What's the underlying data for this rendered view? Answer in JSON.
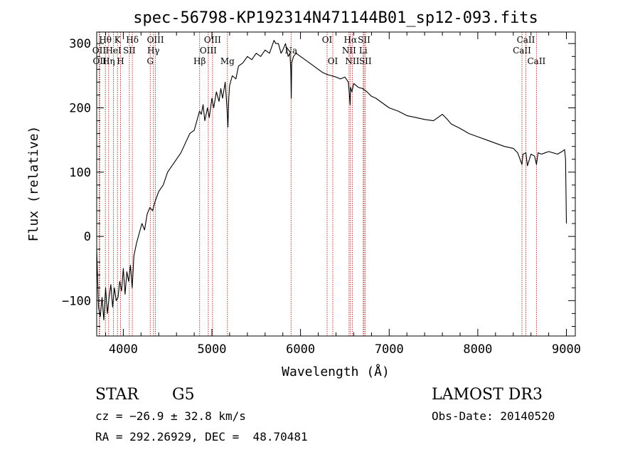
{
  "chart_data": {
    "type": "line",
    "title": "spec-56798-KP192314N471144B01_sp12-093.fits",
    "xlabel": "Wavelength (Å)",
    "ylabel": "Flux (relative)",
    "xlim": [
      3700,
      9100
    ],
    "ylim": [
      -155,
      318
    ],
    "xticks": [
      4000,
      5000,
      6000,
      7000,
      8000,
      9000
    ],
    "yticks": [
      -100,
      0,
      100,
      200,
      300
    ],
    "colors": {
      "spectrum": "#000000",
      "lines": "#b22222"
    },
    "series": [
      {
        "name": "spectrum",
        "x": [
          3700,
          3720,
          3740,
          3760,
          3780,
          3800,
          3820,
          3840,
          3860,
          3880,
          3900,
          3920,
          3940,
          3960,
          3980,
          4000,
          4020,
          4040,
          4060,
          4080,
          4100,
          4120,
          4150,
          4180,
          4210,
          4240,
          4270,
          4300,
          4330,
          4360,
          4400,
          4450,
          4500,
          4550,
          4600,
          4650,
          4700,
          4750,
          4800,
          4820,
          4840,
          4860,
          4880,
          4900,
          4920,
          4950,
          4970,
          5000,
          5020,
          5050,
          5080,
          5100,
          5120,
          5150,
          5170,
          5180,
          5190,
          5200,
          5230,
          5270,
          5300,
          5350,
          5400,
          5450,
          5500,
          5550,
          5600,
          5650,
          5700,
          5720,
          5750,
          5780,
          5800,
          5830,
          5860,
          5880,
          5890,
          5895,
          5900,
          5920,
          5950,
          6000,
          6050,
          6100,
          6150,
          6200,
          6250,
          6300,
          6350,
          6400,
          6450,
          6500,
          6540,
          6560,
          6563,
          6580,
          6600,
          6650,
          6700,
          6750,
          6800,
          6850,
          6900,
          6950,
          7000,
          7100,
          7200,
          7300,
          7400,
          7500,
          7600,
          7650,
          7700,
          7800,
          7900,
          8000,
          8100,
          8200,
          8300,
          8400,
          8450,
          8498,
          8510,
          8542,
          8560,
          8600,
          8640,
          8662,
          8680,
          8720,
          8760,
          8800,
          8850,
          8900,
          8950,
          8980,
          8990,
          9000
        ],
        "y": [
          -20,
          -110,
          -125,
          -95,
          -130,
          -80,
          -120,
          -95,
          -75,
          -110,
          -80,
          -100,
          -95,
          -70,
          -85,
          -50,
          -90,
          -55,
          -70,
          -45,
          -80,
          -30,
          -10,
          5,
          20,
          10,
          35,
          45,
          40,
          55,
          70,
          80,
          100,
          110,
          120,
          130,
          145,
          160,
          165,
          175,
          185,
          195,
          190,
          205,
          180,
          200,
          185,
          215,
          200,
          225,
          210,
          230,
          215,
          240,
          200,
          170,
          215,
          235,
          250,
          245,
          265,
          270,
          280,
          275,
          285,
          280,
          290,
          285,
          305,
          300,
          300,
          285,
          290,
          300,
          280,
          285,
          260,
          215,
          270,
          280,
          285,
          280,
          275,
          270,
          265,
          260,
          255,
          252,
          250,
          248,
          245,
          248,
          240,
          205,
          232,
          225,
          238,
          232,
          230,
          225,
          218,
          215,
          210,
          205,
          200,
          195,
          188,
          185,
          182,
          180,
          190,
          183,
          175,
          168,
          160,
          155,
          150,
          145,
          140,
          137,
          130,
          112,
          128,
          130,
          110,
          128,
          125,
          112,
          130,
          128,
          130,
          132,
          130,
          128,
          132,
          135,
          120,
          20
        ]
      }
    ],
    "spectral_lines": [
      {
        "wavelength": 3727,
        "label": "OII",
        "row": 1
      },
      {
        "wavelength": 3734,
        "label": "OII",
        "row": 2
      },
      {
        "wavelength": 3798,
        "label": "Hθ",
        "row": 0
      },
      {
        "wavelength": 3835,
        "label": "Hη",
        "row": 2
      },
      {
        "wavelength": 3889,
        "label": "HeI",
        "row": 1
      },
      {
        "wavelength": 3934,
        "label": "K",
        "row": 0
      },
      {
        "wavelength": 3969,
        "label": "H",
        "row": 2
      },
      {
        "wavelength": 4068,
        "label": "SII",
        "row": 1
      },
      {
        "wavelength": 4102,
        "label": "Hδ",
        "row": 0
      },
      {
        "wavelength": 4304,
        "label": "G",
        "row": 2
      },
      {
        "wavelength": 4340,
        "label": "Hγ",
        "row": 1
      },
      {
        "wavelength": 4363,
        "label": "OIII",
        "row": 0
      },
      {
        "wavelength": 4861,
        "label": "Hβ",
        "row": 2
      },
      {
        "wavelength": 4959,
        "label": "OIII",
        "row": 1
      },
      {
        "wavelength": 5007,
        "label": "OIII",
        "row": 0
      },
      {
        "wavelength": 5175,
        "label": "Mg",
        "row": 2
      },
      {
        "wavelength": 5893,
        "label": "Na",
        "row": 1
      },
      {
        "wavelength": 6300,
        "label": "OI",
        "row": 0
      },
      {
        "wavelength": 6364,
        "label": "OI",
        "row": 2
      },
      {
        "wavelength": 6548,
        "label": "NII",
        "row": 1
      },
      {
        "wavelength": 6563,
        "label": "Hα",
        "row": 0
      },
      {
        "wavelength": 6584,
        "label": "NII",
        "row": 2
      },
      {
        "wavelength": 6707,
        "label": "Li",
        "row": 1
      },
      {
        "wavelength": 6717,
        "label": "SII",
        "row": 0
      },
      {
        "wavelength": 6731,
        "label": "SII",
        "row": 2
      },
      {
        "wavelength": 8498,
        "label": "CaII",
        "row": 1
      },
      {
        "wavelength": 8542,
        "label": "CaII",
        "row": 0
      },
      {
        "wavelength": 8662,
        "label": "CaII",
        "row": 2
      }
    ]
  },
  "info": {
    "object_class": "STAR",
    "subclass": "G5",
    "survey": "LAMOST DR3",
    "cz": "cz = −26.9 ± 32.8 km/s",
    "obs_date": "Obs-Date: 20140520",
    "coords": "RA = 292.26929, DEC =  48.70481"
  }
}
